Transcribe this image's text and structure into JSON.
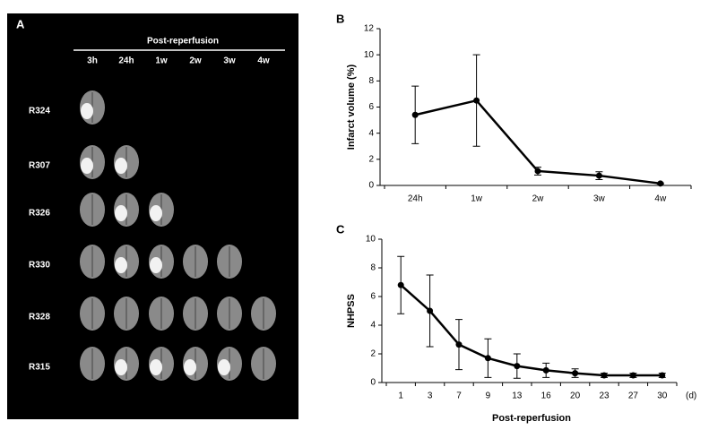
{
  "panel_a": {
    "label": "A",
    "header": "Post-reperfusion",
    "columns": [
      "3h",
      "24h",
      "1w",
      "2w",
      "3w",
      "4w"
    ],
    "rows": [
      "R324",
      "R307",
      "R326",
      "R330",
      "R328",
      "R315"
    ]
  },
  "chart_data": [
    {
      "type": "line",
      "label": "B",
      "y_label": "Infarct volume (%)",
      "categories": [
        "24h",
        "1w",
        "2w",
        "3w",
        "4w"
      ],
      "values": [
        5.4,
        6.5,
        1.1,
        0.75,
        0.15
      ],
      "errors": [
        2.2,
        3.5,
        0.3,
        0.3,
        0.05
      ],
      "ylim": [
        0,
        12
      ],
      "yticks": [
        0,
        2,
        4,
        6,
        8,
        10,
        12
      ],
      "color": "#000000"
    },
    {
      "type": "line",
      "label": "C",
      "y_label": "NHPSS",
      "x_label": "Post-reperfusion",
      "x_unit": "(d)",
      "categories": [
        "1",
        "3",
        "7",
        "9",
        "13",
        "16",
        "20",
        "23",
        "27",
        "30"
      ],
      "values": [
        6.8,
        5.0,
        2.65,
        1.7,
        1.15,
        0.85,
        0.65,
        0.5,
        0.5,
        0.5
      ],
      "errors": [
        2.0,
        2.5,
        1.75,
        1.35,
        0.85,
        0.5,
        0.3,
        0.15,
        0.15,
        0.15
      ],
      "ylim": [
        0,
        10
      ],
      "yticks": [
        0,
        2,
        4,
        6,
        8,
        10
      ],
      "color": "#000000"
    }
  ]
}
